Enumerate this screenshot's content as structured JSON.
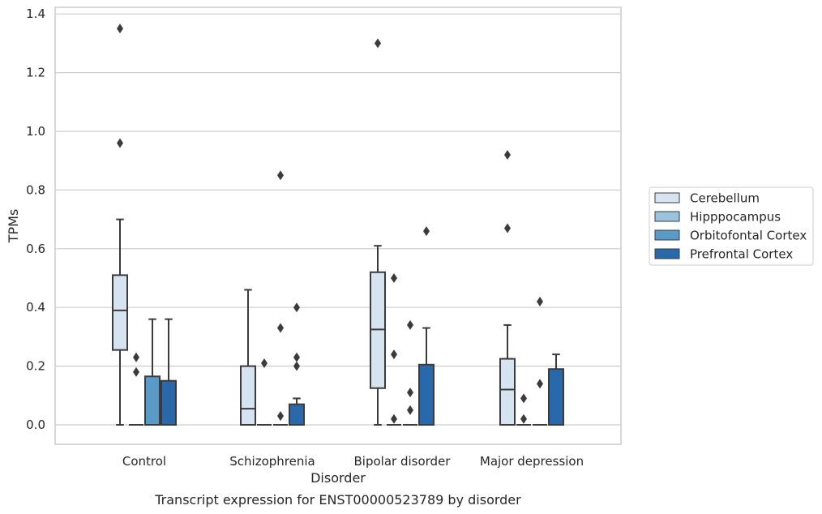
{
  "chart_data": {
    "type": "box",
    "title": "",
    "caption": "Transcript expression for ENST00000523789 by disorder",
    "xlabel": "Disorder",
    "ylabel": "TPMs",
    "ylim": [
      -0.065,
      1.42
    ],
    "yticks": [
      "0.0",
      "0.2",
      "0.4",
      "0.6",
      "0.8",
      "1.0",
      "1.2",
      "1.4"
    ],
    "grid": "horizontal",
    "legend_position": "right",
    "categories": [
      "Control",
      "Schizophrenia",
      "Bipolar disorder",
      "Major depression"
    ],
    "series": [
      {
        "name": "Cerebellum",
        "color": "#d6e4f2",
        "boxes": [
          {
            "whislo": 0.0,
            "q1": 0.255,
            "med": 0.39,
            "q3": 0.51,
            "whishi": 0.7,
            "fliers": [
              0.96,
              1.35
            ]
          },
          {
            "whislo": 0.0,
            "q1": 0.0,
            "med": 0.055,
            "q3": 0.2,
            "whishi": 0.46,
            "fliers": []
          },
          {
            "whislo": 0.0,
            "q1": 0.125,
            "med": 0.325,
            "q3": 0.52,
            "whishi": 0.61,
            "fliers": [
              1.3
            ]
          },
          {
            "whislo": 0.0,
            "q1": 0.0,
            "med": 0.12,
            "q3": 0.225,
            "whishi": 0.34,
            "fliers": [
              0.67,
              0.92
            ]
          }
        ]
      },
      {
        "name": "Hipppocampus",
        "color": "#9ac3dd",
        "boxes": [
          {
            "whislo": 0.0,
            "q1": 0.0,
            "med": 0.0,
            "q3": 0.0,
            "whishi": 0.0,
            "fliers": [
              0.18,
              0.23
            ]
          },
          {
            "whislo": 0.0,
            "q1": 0.0,
            "med": 0.0,
            "q3": 0.0,
            "whishi": 0.0,
            "fliers": [
              0.21
            ]
          },
          {
            "whislo": 0.0,
            "q1": 0.0,
            "med": 0.0,
            "q3": 0.0,
            "whishi": 0.0,
            "fliers": [
              0.02,
              0.24,
              0.5
            ]
          },
          {
            "whislo": 0.0,
            "q1": 0.0,
            "med": 0.0,
            "q3": 0.0,
            "whishi": 0.0,
            "fliers": [
              0.02,
              0.09
            ]
          }
        ]
      },
      {
        "name": "Orbitofontal Cortex",
        "color": "#5a9ac8",
        "boxes": [
          {
            "whislo": 0.0,
            "q1": 0.0,
            "med": 0.0,
            "q3": 0.165,
            "whishi": 0.36,
            "fliers": []
          },
          {
            "whislo": 0.0,
            "q1": 0.0,
            "med": 0.0,
            "q3": 0.0,
            "whishi": 0.0,
            "fliers": [
              0.03,
              0.33,
              0.85
            ]
          },
          {
            "whislo": 0.0,
            "q1": 0.0,
            "med": 0.0,
            "q3": 0.0,
            "whishi": 0.0,
            "fliers": [
              0.05,
              0.11,
              0.34
            ]
          },
          {
            "whislo": 0.0,
            "q1": 0.0,
            "med": 0.0,
            "q3": 0.0,
            "whishi": 0.0,
            "fliers": [
              0.14,
              0.42
            ]
          }
        ]
      },
      {
        "name": "Prefrontal Cortex",
        "color": "#2a69a9",
        "boxes": [
          {
            "whislo": 0.0,
            "q1": 0.0,
            "med": 0.0,
            "q3": 0.15,
            "whishi": 0.36,
            "fliers": []
          },
          {
            "whislo": 0.0,
            "q1": 0.0,
            "med": 0.0,
            "q3": 0.07,
            "whishi": 0.09,
            "fliers": [
              0.2,
              0.23,
              0.4
            ]
          },
          {
            "whislo": 0.0,
            "q1": 0.0,
            "med": 0.0,
            "q3": 0.205,
            "whishi": 0.33,
            "fliers": [
              0.66
            ]
          },
          {
            "whislo": 0.0,
            "q1": 0.0,
            "med": 0.0,
            "q3": 0.19,
            "whishi": 0.24,
            "fliers": []
          }
        ]
      }
    ]
  }
}
